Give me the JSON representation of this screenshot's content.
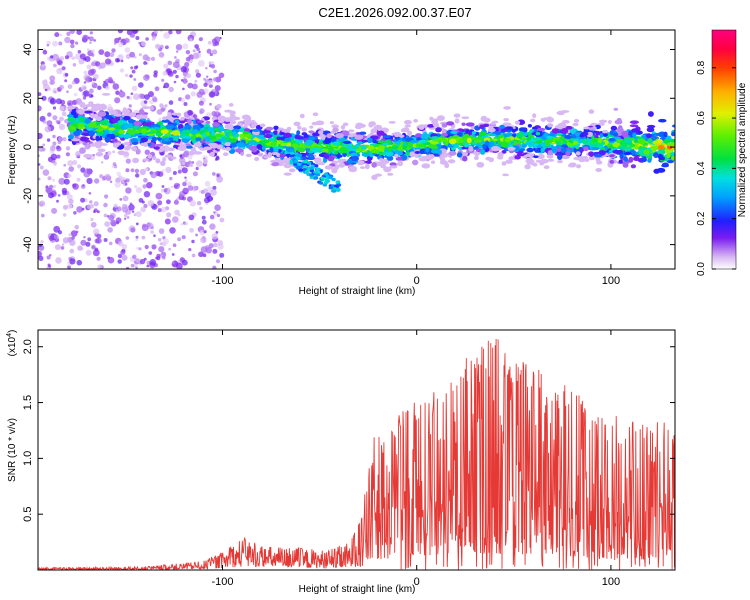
{
  "title": "C2E1.2026.092.00.37.E07",
  "colors": {
    "snr_line": "#e53935",
    "axis": "#000000"
  },
  "chart_data": [
    {
      "type": "heatmap",
      "name": "spectrogram",
      "xlabel": "Height of straight line (km)",
      "ylabel": "Frequency (Hz)",
      "xlim": [
        -195,
        133
      ],
      "ylim": [
        -50,
        48
      ],
      "x_ticks": [
        -100,
        0,
        100
      ],
      "y_ticks": [
        -40,
        -20,
        0,
        20,
        40
      ],
      "colorbar": {
        "label": "Normalized spectral amplitude",
        "range": [
          0,
          0.95
        ],
        "ticks": [
          0.0,
          0.2,
          0.4,
          0.6,
          0.8
        ]
      },
      "ridge": {
        "x": [
          -170,
          -150,
          -130,
          -110,
          -90,
          -70,
          -50,
          -30,
          -10,
          10,
          30,
          50,
          70,
          90,
          110,
          130
        ],
        "freq": [
          9,
          7,
          6,
          5,
          4,
          1,
          0,
          -1,
          0,
          2,
          3,
          3,
          2,
          2,
          1,
          0
        ]
      }
    },
    {
      "type": "line",
      "name": "snr",
      "xlabel": "Height of straight line (km)",
      "ylabel": "SNR (10 * v/v)",
      "y_multiplier": "(x10",
      "y_multiplier_exp": "4",
      "xlim": [
        -195,
        133
      ],
      "ylim": [
        0,
        2.15
      ],
      "x_ticks": [
        -100,
        0,
        100
      ],
      "y_ticks": [
        0.5,
        1.0,
        1.5,
        2.0
      ],
      "envelope": {
        "x": [
          -195,
          -140,
          -110,
          -100,
          -90,
          -80,
          -60,
          -45,
          -35,
          -28,
          -22,
          -15,
          -5,
          0,
          10,
          20,
          30,
          40,
          50,
          60,
          70,
          80,
          90,
          100,
          110,
          120,
          133
        ],
        "base": [
          0.01,
          0.01,
          0.03,
          0.06,
          0.1,
          0.1,
          0.06,
          0.05,
          0.06,
          0.1,
          0.3,
          0.32,
          0.45,
          0.4,
          0.45,
          0.5,
          0.48,
          0.5,
          0.45,
          0.4,
          0.35,
          0.4,
          0.35,
          0.3,
          0.25,
          0.35,
          0.4
        ],
        "peak": [
          0.02,
          0.03,
          0.08,
          0.16,
          0.3,
          0.22,
          0.2,
          0.18,
          0.25,
          0.55,
          1.2,
          1.25,
          1.5,
          1.55,
          1.6,
          1.9,
          2.0,
          2.15,
          1.85,
          1.9,
          1.6,
          1.7,
          1.5,
          1.45,
          1.35,
          1.4,
          1.3
        ]
      }
    }
  ]
}
